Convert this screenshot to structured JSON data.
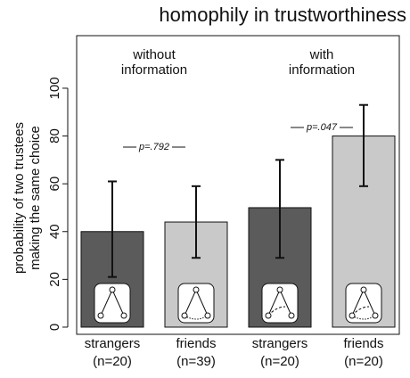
{
  "chart_data": {
    "type": "bar",
    "title": "homophily in trustworthiness",
    "ylabel": [
      "probability of two trustees",
      "making the same choice"
    ],
    "categories": [
      "strangers",
      "friends",
      "strangers",
      "friends"
    ],
    "sample_sizes": [
      "(n=20)",
      "(n=39)",
      "(n=20)",
      "(n=20)"
    ],
    "values": [
      40,
      44,
      50,
      80
    ],
    "ci_lower": [
      21,
      29,
      29,
      59
    ],
    "ci_upper": [
      61,
      59,
      70,
      93
    ],
    "colors": [
      "#5b5b5b",
      "#c9c9c9",
      "#5b5b5b",
      "#c9c9c9"
    ],
    "groups": [
      {
        "label": [
          "without",
          "information"
        ],
        "p_value": "p=.792"
      },
      {
        "label": [
          "with",
          "information"
        ],
        "p_value": "p=.047"
      }
    ],
    "ylim": [
      -3,
      122
    ],
    "yticks": [
      0,
      20,
      40,
      60,
      80,
      100
    ]
  }
}
